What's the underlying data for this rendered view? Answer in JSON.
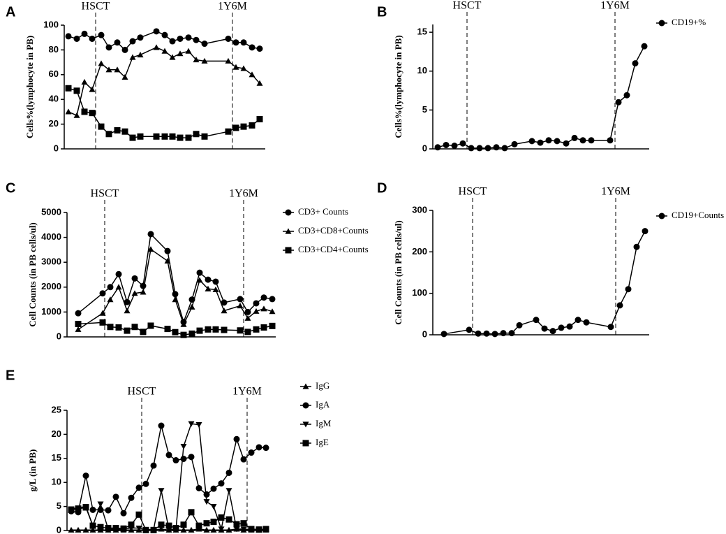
{
  "chart_data": [
    {
      "type": "line",
      "panel": "A",
      "ylabel": "Cells%(lymphocyte in PB)",
      "x": [
        6,
        18,
        29,
        40,
        53,
        64,
        76,
        87,
        98,
        109,
        132,
        144,
        155,
        166,
        178,
        189,
        201,
        235,
        246,
        257,
        269,
        280
      ],
      "xlim": [
        0,
        288
      ],
      "ylim": [
        0,
        100
      ],
      "yticks": [
        0,
        20,
        40,
        60,
        80,
        100
      ],
      "annotations": [
        {
          "text": "HSCT",
          "x": 45
        },
        {
          "text": "1Y6M",
          "x": 241
        }
      ],
      "series": [
        {
          "marker": "circle",
          "color": "#000000",
          "values": [
            91,
            89,
            93,
            89,
            92,
            82,
            86,
            80,
            87,
            90,
            95,
            92,
            87,
            89,
            90,
            88,
            85,
            89,
            86,
            86,
            82,
            81
          ]
        },
        {
          "marker": "triangle",
          "color": "#000000",
          "values": [
            30,
            27,
            54,
            48,
            69,
            64,
            64,
            58,
            74,
            76,
            82,
            79,
            74,
            77,
            79,
            72,
            71,
            71,
            66,
            65,
            60,
            53
          ]
        },
        {
          "marker": "square",
          "color": "#000000",
          "values": [
            49,
            47,
            30,
            29,
            18,
            12,
            15,
            14,
            9,
            10,
            10,
            10,
            10,
            9,
            9,
            12,
            10,
            14,
            17,
            18,
            19,
            24
          ]
        }
      ]
    },
    {
      "type": "line",
      "panel": "B",
      "ylabel": "Cells%(lymphocyte in PB)",
      "legend": "right",
      "x": [
        7,
        19,
        31,
        43,
        55,
        67,
        79,
        91,
        103,
        117,
        142,
        154,
        166,
        178,
        191,
        203,
        215,
        227,
        254,
        266,
        278,
        290,
        303
      ],
      "xlim": [
        0,
        310
      ],
      "ylim": [
        0,
        16
      ],
      "yticks": [
        0,
        5,
        10,
        15
      ],
      "annotations": [
        {
          "text": "HSCT",
          "x": 49
        },
        {
          "text": "1Y6M",
          "x": 261
        }
      ],
      "series": [
        {
          "name": "CD19+%",
          "marker": "circle",
          "color": "#000000",
          "values": [
            0.2,
            0.5,
            0.4,
            0.7,
            0.1,
            0.1,
            0.1,
            0.2,
            0.1,
            0.6,
            1.0,
            0.8,
            1.1,
            1.0,
            0.7,
            1.4,
            1.1,
            1.1,
            1.1,
            6.0,
            6.9,
            11.0,
            13.2
          ]
        }
      ]
    },
    {
      "type": "line",
      "panel": "C",
      "ylabel": "Cell Counts (in PB cells/ul)",
      "legend": "right",
      "x": [
        16,
        51,
        62,
        74,
        86,
        97,
        109,
        120,
        144,
        155,
        167,
        179,
        190,
        202,
        213,
        225,
        248,
        259,
        271,
        282,
        294
      ],
      "xlim": [
        0,
        299
      ],
      "ylim": [
        0,
        5000
      ],
      "yticks": [
        0,
        1000,
        2000,
        3000,
        4000,
        5000
      ],
      "annotations": [
        {
          "text": "HSCT",
          "x": 54
        },
        {
          "text": "1Y6M",
          "x": 253
        }
      ],
      "series": [
        {
          "name": "CD3+ Counts",
          "marker": "circle",
          "color": "#000000",
          "values": [
            950,
            1750,
            2000,
            2520,
            1400,
            2350,
            2050,
            4130,
            3450,
            1720,
            600,
            1500,
            2580,
            2300,
            2220,
            1380,
            1520,
            1000,
            1350,
            1580,
            1520
          ]
        },
        {
          "name": "CD3+CD8+Counts",
          "marker": "triangle",
          "color": "#000000",
          "values": [
            300,
            950,
            1500,
            2000,
            1050,
            1750,
            1800,
            3520,
            3050,
            1500,
            500,
            1200,
            2280,
            1930,
            1900,
            1050,
            1250,
            750,
            1030,
            1130,
            1020
          ]
        },
        {
          "name": "CD3+CD4+Counts",
          "marker": "square",
          "color": "#000000",
          "values": [
            520,
            580,
            400,
            380,
            250,
            400,
            200,
            450,
            320,
            190,
            80,
            130,
            250,
            300,
            300,
            280,
            260,
            200,
            300,
            380,
            440
          ]
        }
      ]
    },
    {
      "type": "line",
      "panel": "D",
      "ylabel": "Cell Counts (in PB cells/ul)",
      "legend": "right",
      "x": [
        16,
        52,
        65,
        77,
        89,
        101,
        113,
        124,
        148,
        160,
        172,
        184,
        196,
        208,
        220,
        255,
        268,
        280,
        292,
        304
      ],
      "xlim": [
        0,
        310
      ],
      "ylim": [
        0,
        300
      ],
      "yticks": [
        0,
        100,
        200,
        300
      ],
      "annotations": [
        {
          "text": "HSCT",
          "x": 57
        },
        {
          "text": "1Y6M",
          "x": 262
        }
      ],
      "series": [
        {
          "name": "CD19+Counts",
          "marker": "circle",
          "color": "#000000",
          "values": [
            2,
            12,
            3,
            3,
            2,
            4,
            4,
            23,
            36,
            15,
            9,
            17,
            20,
            36,
            30,
            19,
            71,
            110,
            212,
            250
          ]
        }
      ]
    },
    {
      "type": "line",
      "panel": "E",
      "ylabel": "g/L (in PB)",
      "legend": "right",
      "x": [
        6,
        16,
        27,
        37,
        48,
        59,
        70,
        81,
        92,
        103,
        113,
        124,
        135,
        146,
        156,
        167,
        178,
        189,
        200,
        210,
        221,
        232,
        243,
        253,
        264,
        275,
        285
      ],
      "xlim": [
        0,
        289
      ],
      "ylim": [
        0,
        25
      ],
      "yticks": [
        0,
        5,
        10,
        15,
        20,
        25
      ],
      "annotations": [
        {
          "text": "HSCT",
          "x": 107
        },
        {
          "text": "1Y6M",
          "x": 258
        }
      ],
      "series": [
        {
          "name": "IgG",
          "marker": "triangle",
          "color": "#000000",
          "values": [
            0.1,
            0.1,
            0.1,
            0.1,
            0.1,
            0.1,
            0.1,
            0.1,
            0.1,
            0.1,
            0.1,
            0.1,
            0.3,
            0.1,
            0.1,
            0.1,
            0.1,
            0.3,
            0.1,
            0.1,
            0.1,
            0.1,
            0.3,
            0.1,
            0.1,
            0.1,
            0.1
          ]
        },
        {
          "name": "IgA",
          "marker": "circle",
          "color": "#000000",
          "values": [
            4.0,
            3.8,
            11.4,
            4.3,
            4.3,
            4.2,
            7.0,
            3.6,
            6.8,
            8.9,
            9.7,
            13.5,
            21.8,
            15.7,
            14.6,
            14.9,
            15.3,
            8.8,
            7.5,
            8.7,
            9.8,
            12.0,
            19.0,
            14.8,
            16.2,
            17.3,
            17.2
          ]
        },
        {
          "name": "IgM",
          "marker": "triangle-down",
          "color": "#000000",
          "values": [
            4.5,
            4.7,
            5.0,
            1.0,
            5.5,
            0.3,
            0.3,
            0.3,
            0.5,
            0.5,
            0.2,
            0.2,
            8.3,
            0.2,
            0.2,
            17.5,
            22.2,
            22.0,
            6.0,
            5.0,
            0.3,
            8.3,
            0.3,
            0.3,
            0.2,
            0.2,
            0.2
          ]
        },
        {
          "name": "IgE",
          "marker": "square",
          "color": "#000000",
          "values": [
            4.3,
            4.5,
            4.8,
            1.0,
            0.7,
            0.5,
            0.5,
            0.4,
            1.2,
            3.3,
            0.1,
            0.1,
            1.2,
            1.0,
            0.5,
            1.2,
            3.8,
            1.0,
            1.5,
            1.8,
            2.7,
            2.3,
            1.3,
            1.5,
            0.3,
            0.2,
            0.3
          ]
        }
      ]
    }
  ]
}
